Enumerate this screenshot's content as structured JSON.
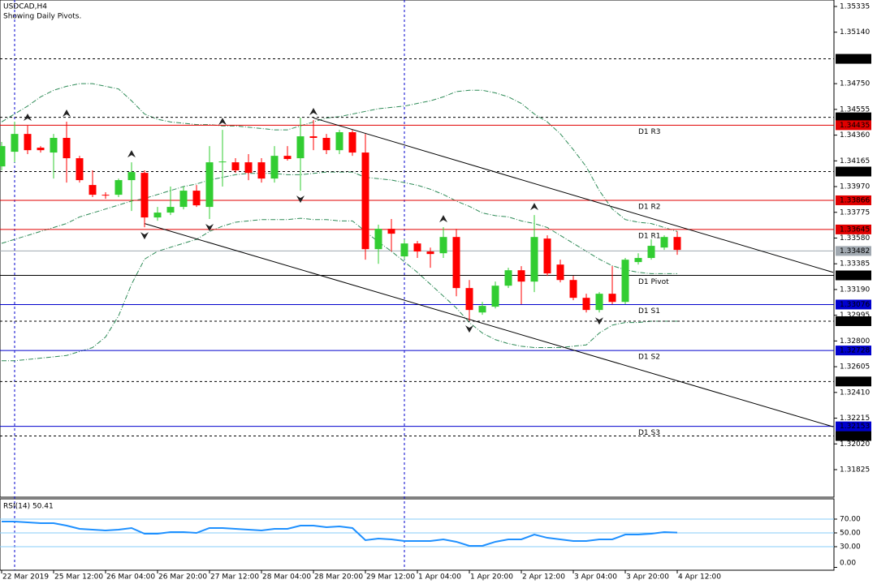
{
  "header": {
    "symbol": "USDCAD,H4",
    "note": "Showing Daily Pivots."
  },
  "chart_data": [
    {
      "type": "candlestick",
      "categories": [
        "22 Mar 2019",
        null,
        null,
        null,
        "25 Mar 12:00",
        null,
        null,
        null,
        "26 Mar 04:00",
        null,
        null,
        null,
        "26 Mar 20:00",
        null,
        null,
        null,
        "27 Mar 12:00",
        null,
        null,
        null,
        "28 Mar 04:00",
        null,
        null,
        null,
        "28 Mar 20:00",
        null,
        null,
        null,
        "29 Mar 12:00",
        null,
        null,
        null,
        "1 Apr 04:00",
        null,
        null,
        null,
        "1 Apr 20:00",
        null,
        null,
        null,
        "2 Apr 12:00",
        null,
        null,
        null,
        "3 Apr 04:00",
        null,
        null,
        null,
        "3 Apr 20:00",
        null,
        null,
        null,
        "4 Apr 12:00"
      ],
      "open": [
        1.34123,
        1.34234,
        1.34369,
        1.34265,
        1.34228,
        1.34339,
        1.34185,
        1.33982,
        1.33908,
        1.33908,
        1.34019,
        1.34074,
        1.33736,
        1.33773,
        1.33816,
        1.33939,
        1.33816,
        1.34154,
        1.34154,
        1.34154,
        1.34154,
        1.34031,
        1.34203,
        1.34185,
        1.34351,
        1.34339,
        1.34246,
        1.34382,
        1.34228,
        1.33496,
        1.3365,
        1.33441,
        1.33539,
        1.33478,
        1.33465,
        1.33588,
        1.33201,
        1.33016,
        1.3306,
        1.33219,
        1.33336,
        1.3325,
        1.33576,
        1.33379,
        1.33262,
        1.33127,
        1.33035,
        1.33158,
        1.33096,
        1.33398,
        1.33429,
        1.33508,
        1.33588
      ],
      "high": [
        1.34308,
        1.34462,
        1.34431,
        1.34277,
        1.34369,
        1.34462,
        1.34203,
        1.34093,
        1.33927,
        1.34031,
        1.34154,
        1.34093,
        1.33816,
        1.3397,
        1.3397,
        1.33982,
        1.34277,
        1.344,
        1.34185,
        1.34216,
        1.34185,
        1.34277,
        1.34277,
        1.34492,
        1.34474,
        1.34369,
        1.344,
        1.344,
        1.34369,
        1.33681,
        1.33724,
        1.3357,
        1.33558,
        1.33508,
        1.33662,
        1.3365,
        1.33262,
        1.33096,
        1.3325,
        1.33355,
        1.33367,
        1.33754,
        1.33601,
        1.33416,
        1.33293,
        1.33158,
        1.3317,
        1.33367,
        1.33429,
        1.33465,
        1.3357,
        1.33601,
        1.33631
      ],
      "low": [
        1.34093,
        1.34154,
        1.34216,
        1.34228,
        1.34031,
        1.34,
        1.34,
        1.3389,
        1.33877,
        1.3389,
        1.33785,
        1.33662,
        1.33711,
        1.33754,
        1.33797,
        1.33816,
        1.33724,
        1.3397,
        1.34074,
        1.34019,
        1.34,
        1.34,
        1.34167,
        1.33939,
        1.34246,
        1.34216,
        1.34216,
        1.34203,
        1.33416,
        1.33385,
        1.33478,
        1.33416,
        1.33429,
        1.33355,
        1.33429,
        1.33139,
        1.32955,
        1.32998,
        1.33047,
        1.33201,
        1.33078,
        1.3317,
        1.33293,
        1.33244,
        1.33109,
        1.33016,
        1.33016,
        1.33078,
        1.33078,
        1.33379,
        1.33416,
        1.3349,
        1.33453
      ],
      "close": [
        1.34277,
        1.34369,
        1.34246,
        1.34246,
        1.34339,
        1.34185,
        1.34019,
        1.33908,
        1.33905,
        1.34019,
        1.3408,
        1.33736,
        1.33773,
        1.33816,
        1.33939,
        1.33828,
        1.34154,
        1.3416,
        1.34093,
        1.34074,
        1.34031,
        1.34203,
        1.34179,
        1.34351,
        1.34339,
        1.34246,
        1.34382,
        1.34228,
        1.33496,
        1.3365,
        1.33613,
        1.33539,
        1.33478,
        1.33459,
        1.33588,
        1.33201,
        1.33035,
        1.33066,
        1.33219,
        1.33336,
        1.3325,
        1.33588,
        1.33312,
        1.33262,
        1.33127,
        1.33035,
        1.33158,
        1.33096,
        1.33416,
        1.33429,
        1.33521,
        1.33588,
        1.3349
      ],
      "up_color": "#32cd32",
      "down_color": "#ff0000",
      "ylim": [
        1.31616,
        1.35384
      ],
      "yticks": [
        1.35335,
        {
          "value": 1.3514,
          "label": "1.35140"
        },
        {
          "value": 1.3475,
          "label": "1.34750"
        },
        1.34555,
        {
          "value": 1.3436,
          "label": "1.34360"
        },
        1.34165,
        {
          "value": 1.3397,
          "label": "1.33970"
        },
        1.33775,
        {
          "value": 1.3358,
          "label": "1.33580"
        },
        1.33385,
        {
          "value": 1.3319,
          "label": "1.33190"
        },
        1.32995,
        {
          "value": 1.328,
          "label": "1.32800"
        },
        1.32605,
        {
          "value": 1.3241,
          "label": "1.32410"
        },
        1.32215,
        {
          "value": 1.3202,
          "label": "1.32020"
        },
        1.31825
      ],
      "grid": false,
      "bands": {
        "color": "#2e8b57",
        "upper": [
          1.3446,
          1.3452,
          1.3458,
          1.3465,
          1.347,
          1.3473,
          1.3475,
          1.3475,
          1.3473,
          1.3471,
          1.3462,
          1.3452,
          1.3448,
          1.3446,
          1.3445,
          1.3444,
          1.3444,
          1.3443,
          1.3443,
          1.3442,
          1.3441,
          1.344,
          1.344,
          1.3443,
          1.3446,
          1.3449,
          1.345,
          1.3452,
          1.3454,
          1.3456,
          1.3457,
          1.3458,
          1.346,
          1.3462,
          1.3465,
          1.3469,
          1.347,
          1.347,
          1.3468,
          1.3465,
          1.346,
          1.3452,
          1.3446,
          1.3437,
          1.3425,
          1.3412,
          1.3394,
          1.338,
          1.3372,
          1.337,
          1.3369,
          1.3366,
          1.3363
        ],
        "middle": [
          1.3354,
          1.3357,
          1.336,
          1.3363,
          1.3366,
          1.3369,
          1.3374,
          1.3377,
          1.338,
          1.3383,
          1.3386,
          1.3388,
          1.3391,
          1.3394,
          1.3397,
          1.3399,
          1.3402,
          1.3404,
          1.3406,
          1.3407,
          1.3407,
          1.3407,
          1.3406,
          1.3406,
          1.3407,
          1.3408,
          1.3408,
          1.3408,
          1.3404,
          1.3403,
          1.3402,
          1.34,
          1.3398,
          1.3395,
          1.3391,
          1.3386,
          1.3382,
          1.3377,
          1.3375,
          1.3374,
          1.3371,
          1.3369,
          1.3366,
          1.336,
          1.3354,
          1.3348,
          1.3342,
          1.3337,
          1.3334,
          1.3332,
          1.3331,
          1.3331,
          1.3331
        ],
        "lower": [
          1.3265,
          1.3265,
          1.3266,
          1.3267,
          1.3268,
          1.3269,
          1.3272,
          1.3275,
          1.3283,
          1.3299,
          1.3323,
          1.3342,
          1.3348,
          1.3351,
          1.3354,
          1.3357,
          1.3363,
          1.3367,
          1.337,
          1.3371,
          1.3372,
          1.3372,
          1.3372,
          1.3373,
          1.3372,
          1.3372,
          1.3371,
          1.3371,
          1.3363,
          1.3355,
          1.3348,
          1.334,
          1.3332,
          1.3323,
          1.3314,
          1.3305,
          1.3294,
          1.3286,
          1.3281,
          1.3278,
          1.3276,
          1.3275,
          1.3275,
          1.3275,
          1.3276,
          1.3277,
          1.3286,
          1.3292,
          1.3294,
          1.3294,
          1.3295,
          1.3295,
          1.3295
        ]
      },
      "trendlines": [
        {
          "start": [
            24,
            1.3449
          ],
          "end": [
            64,
            1.3332
          ]
        },
        {
          "start": [
            11,
            1.3369
          ],
          "end": [
            64,
            1.3215
          ]
        }
      ],
      "fractals": {
        "up": [
          2,
          5,
          10,
          17,
          24,
          34,
          41
        ],
        "down": [
          11,
          16,
          23,
          36,
          46
        ]
      },
      "levels": [
        {
          "value": 1.34938,
          "style": "dotted",
          "color": "#000000"
        },
        {
          "value": 1.34495,
          "style": "dotted",
          "color": "#000000"
        },
        {
          "value": 1.34084,
          "style": "dotted",
          "color": "#000000"
        },
        {
          "value": 1.3295,
          "label": "1.32950",
          "style": "dotted",
          "color": "#000000"
        },
        {
          "value": 1.32493,
          "style": "dotted",
          "color": "#000000"
        },
        {
          "value": 1.3208,
          "label": "1.32080",
          "style": "dotted",
          "color": "#000000"
        },
        {
          "name": "D1 R3",
          "value": 1.34435,
          "style": "solid",
          "color": "#e00000"
        },
        {
          "name": "D1 R2",
          "value": 1.33866,
          "style": "solid",
          "color": "#e00000"
        },
        {
          "name": "D1 R1",
          "value": 1.33645,
          "style": "solid",
          "color": "#e00000"
        },
        {
          "name": "D1 Pivot",
          "value": 1.33297,
          "style": "solid",
          "color": "#000000"
        },
        {
          "name": "D1 S1",
          "value": 1.33076,
          "style": "solid",
          "color": "#0000cd"
        },
        {
          "name": "D1 S2",
          "value": 1.32728,
          "style": "solid",
          "color": "#0000cd"
        },
        {
          "name": "D1 S3",
          "value": 1.32153,
          "style": "solid",
          "color": "#0000cd"
        },
        {
          "value": 1.33482,
          "style": "solid",
          "color": "#a0a8b0"
        }
      ]
    },
    {
      "type": "line",
      "title": "RSI(14) 50.41",
      "color": "#1e90ff",
      "values": [
        66.5,
        66.5,
        65.3,
        64.1,
        64.1,
        60.6,
        55.9,
        54.7,
        53.5,
        54.7,
        57.1,
        48.8,
        48.8,
        51.2,
        51.2,
        50,
        57.1,
        57.1,
        55.9,
        54.7,
        53.5,
        55.9,
        55.9,
        60.6,
        60.6,
        58.2,
        59.4,
        57.1,
        39.4,
        41.8,
        40.6,
        38.2,
        38.2,
        38.2,
        40.6,
        37.1,
        31.2,
        31.2,
        37.1,
        40.6,
        40.6,
        47.6,
        42.9,
        40.6,
        38.2,
        38.2,
        40.6,
        40.6,
        47.6,
        47.6,
        48.8,
        51.2,
        50.41
      ],
      "ylim": [
        0,
        100
      ],
      "yticks": [
        {
          "value": 70,
          "label": "70.00"
        },
        {
          "value": 50,
          "label": "50.00"
        },
        {
          "value": 30,
          "label": "30.00"
        },
        {
          "value": 0,
          "label": "0.00"
        }
      ],
      "levels": [
        70,
        50,
        30
      ],
      "level_color": "#87cefa"
    }
  ]
}
